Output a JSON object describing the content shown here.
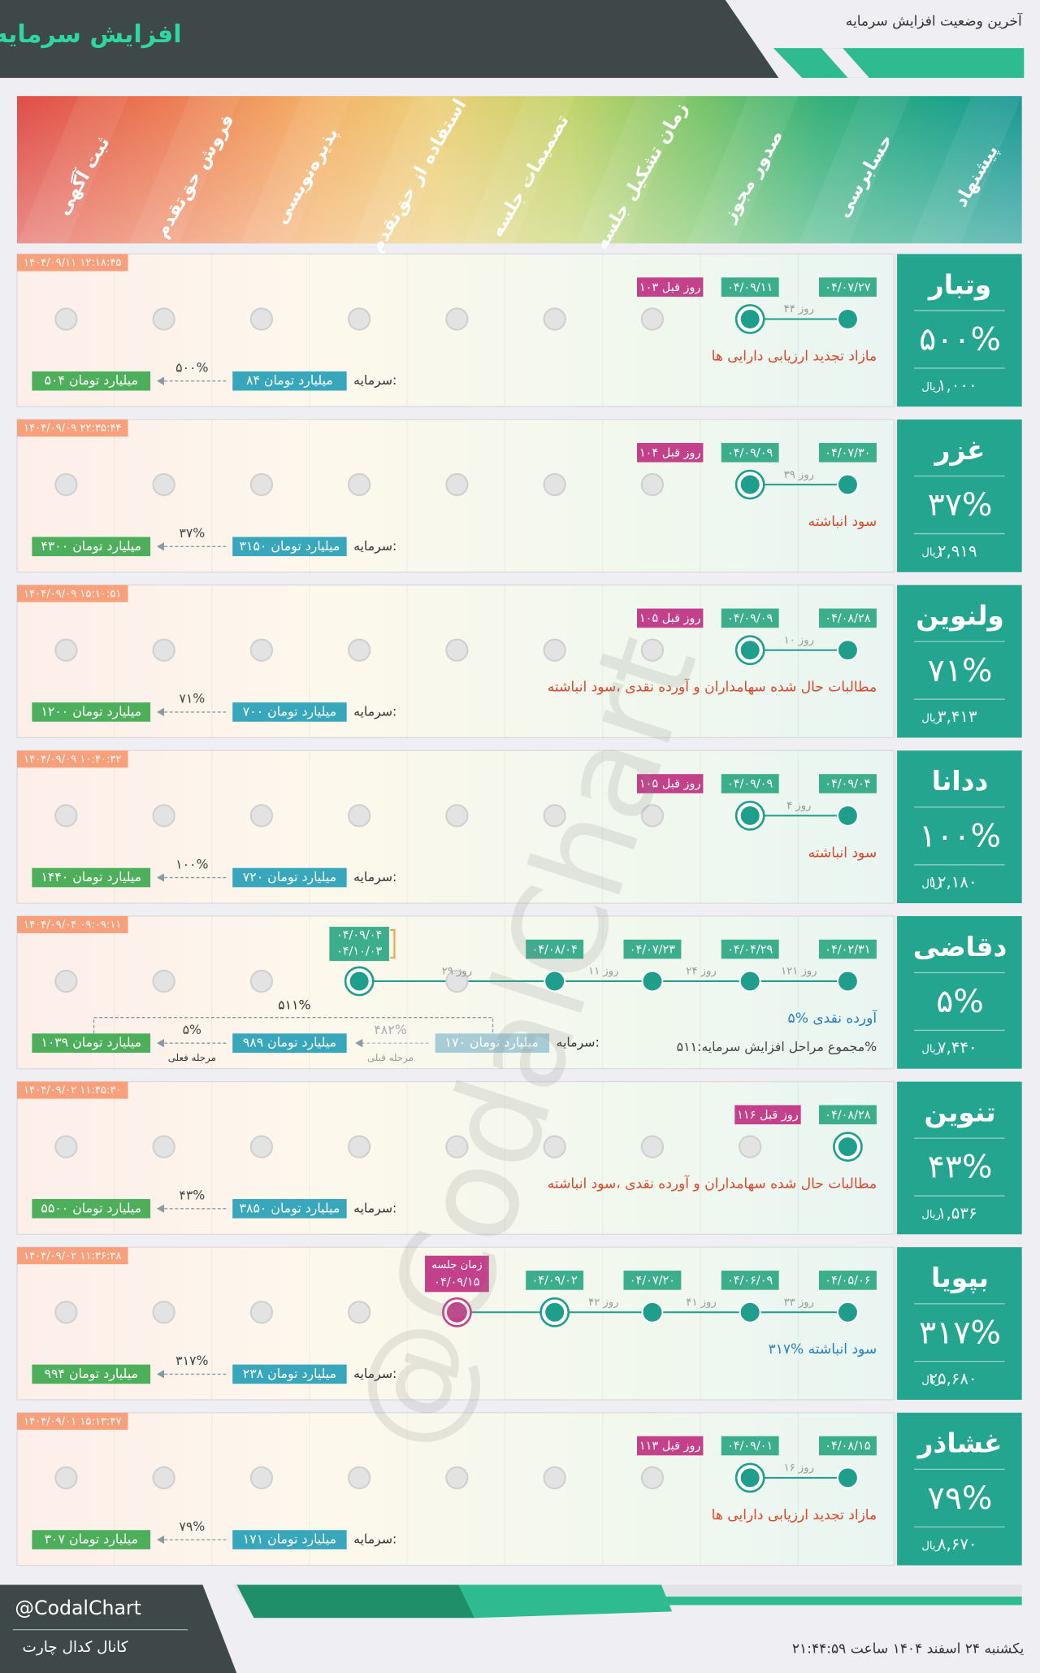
{
  "header": {
    "title": "افزایش سرمایه",
    "subtitle": "آخرین وضعیت افزایش سرمایه"
  },
  "stages": [
    "ثبت آگهی",
    "فروش حق‌تقدم",
    "پذیره‌نویسی",
    "استفاده از حق‌تقدم",
    "تصمیمات جلسه",
    "زمان تشکیل جلسه",
    "صدور مجوز",
    "حسابرسی",
    "پیشنهاد"
  ],
  "price_unit": "ریال",
  "capital_label": "سرمایه:",
  "companies": [
    {
      "name": "وتبار",
      "percent": "۵۰۰%",
      "price": "۱,۰۰۰",
      "timestamp": "۱۴۰۴/۰۹/۱۱ ۱۲:۱۸:۴۵",
      "description": "مازاد تجدید ارزیابی دارایی ها",
      "desc_color": "#d9482b",
      "capital": "۸۴ میلیارد تومان",
      "increase": "۵۰۰%",
      "result": "۵۰۴ میلیارد تومان",
      "dates": [
        null,
        null,
        null,
        null,
        null,
        null,
        null,
        "۰۴/۰۹/۱۱",
        "۰۴/۰۷/۲۷"
      ],
      "gaps": [
        "۴۴ روز"
      ],
      "ago": "۱۰۳ روز قبل"
    },
    {
      "name": "غزر",
      "percent": "۳۷%",
      "price": "۲,۹۱۹",
      "timestamp": "۱۴۰۴/۰۹/۰۹ ۲۲:۳۵:۴۴",
      "description": "سود انباشته",
      "desc_color": "#d9482b",
      "capital": "۳۱۵۰ میلیارد تومان",
      "increase": "۳۷%",
      "result": "۴۳۰۰ میلیارد تومان",
      "dates": [
        null,
        null,
        null,
        null,
        null,
        null,
        null,
        "۰۴/۰۹/۰۹",
        "۰۴/۰۷/۳۰"
      ],
      "gaps": [
        "۳۹ روز"
      ],
      "ago": "۱۰۴ روز قبل"
    },
    {
      "name": "ولنوین",
      "percent": "۷۱%",
      "price": "۳,۴۱۳",
      "timestamp": "۱۴۰۴/۰۹/۰۹ ۱۵:۱۰:۵۱",
      "description": "مطالبات حال شده سهامداران و آورده نقدی ،سود انباشته",
      "desc_color": "#d9482b",
      "capital": "۷۰۰ میلیارد تومان",
      "increase": "۷۱%",
      "result": "۱۲۰۰ میلیارد تومان",
      "dates": [
        null,
        null,
        null,
        null,
        null,
        null,
        null,
        "۰۴/۰۹/۰۹",
        "۰۴/۰۸/۲۸"
      ],
      "gaps": [
        "۱۰ روز"
      ],
      "ago": "۱۰۵ روز قبل"
    },
    {
      "name": "ددانا",
      "percent": "۱۰۰%",
      "price": "۱۲,۱۸۰",
      "timestamp": "۱۴۰۴/۰۹/۰۹ ۱۰:۴۰:۳۲",
      "description": "سود انباشته",
      "desc_color": "#d9482b",
      "capital": "۷۲۰ میلیارد تومان",
      "increase": "۱۰۰%",
      "result": "۱۴۴۰ میلیارد تومان",
      "dates": [
        null,
        null,
        null,
        null,
        null,
        null,
        null,
        "۰۴/۰۹/۰۹",
        "۰۴/۰۹/۰۴"
      ],
      "gaps": [
        "۴ روز"
      ],
      "ago": "۱۰۵ روز قبل"
    },
    {
      "name": "دقاضی",
      "percent": "۵%",
      "price": "۷,۴۴۰",
      "timestamp": "۱۴۰۴/۰۹/۰۴ ۰۹:۰۹:۱۱",
      "description": "۵% آورده نقدی",
      "desc_color": "#2a7fc0",
      "note": "مجموع مراحل افزایش سرمایه:۵۱۱%",
      "capital": "۹۸۹ میلیارد تومان",
      "increase": "۵%",
      "result": "۱۰۳۹ میلیارد تومان",
      "prev_capital": "۱۷۰ میلیارد تومان",
      "prev_increase": "۴۸۲%",
      "total_increase": "۵۱۱%",
      "prev_label": "مرحله قبلی",
      "current_label": "مرحله فعلی",
      "dates": [
        null,
        null,
        null,
        [
          "۰۴/۰۹/۰۴",
          "۰۴/۱۰/۰۳"
        ],
        null,
        "۰۴/۰۸/۰۴",
        "۰۴/۰۷/۲۳",
        "۰۴/۰۴/۲۹",
        "۰۴/۰۲/۳۱"
      ],
      "gaps": [
        "۱۲۱ روز",
        "۲۴ روز",
        "۱۱ روز",
        "۲۹ روز"
      ]
    },
    {
      "name": "تنوین",
      "percent": "۴۳%",
      "price": "۱,۵۳۶",
      "timestamp": "۱۴۰۴/۰۹/۰۲ ۱۱:۴۵:۳۰",
      "description": "مطالبات حال شده سهامداران و آورده نقدی ،سود انباشته",
      "desc_color": "#d9482b",
      "capital": "۳۸۵۰ میلیارد تومان",
      "increase": "۴۳%",
      "result": "۵۵۰۰ میلیارد تومان",
      "dates": [
        null,
        null,
        null,
        null,
        null,
        null,
        null,
        null,
        "۰۴/۰۸/۲۸"
      ],
      "gaps": [],
      "ago": "۱۱۶ روز قبل"
    },
    {
      "name": "بپویا",
      "percent": "۳۱۷%",
      "price": "۲۵,۶۸۰",
      "timestamp": "۱۴۰۴/۰۹/۰۲ ۱۱:۳۶:۳۸",
      "description": "۳۱۷% سود انباشته",
      "desc_color": "#2a7fc0",
      "capital": "۲۳۸ میلیارد تومان",
      "increase": "۳۱۷%",
      "result": "۹۹۴ میلیارد تومان",
      "dates": [
        null,
        null,
        null,
        null,
        null,
        "۰۴/۰۹/۰۲",
        "۰۴/۰۷/۲۰",
        "۰۴/۰۶/۰۹",
        "۰۴/۰۵/۰۶"
      ],
      "gaps": [
        "۳۳ روز",
        "۴۱ روز",
        "۴۲ روز"
      ],
      "meeting": {
        "label": "زمان جلسه",
        "date": "۰۴/۰۹/۱۵"
      }
    },
    {
      "name": "غشاذر",
      "percent": "۷۹%",
      "price": "۸,۶۷۰",
      "timestamp": "۱۴۰۴/۰۹/۰۱ ۱۵:۱۳:۴۷",
      "description": "مازاد تجدید ارزیابی دارایی ها",
      "desc_color": "#d9482b",
      "capital": "۱۷۱ میلیارد تومان",
      "increase": "۷۹%",
      "result": "۳۰۷ میلیارد تومان",
      "dates": [
        null,
        null,
        null,
        null,
        null,
        null,
        null,
        "۰۴/۰۹/۰۱",
        "۰۴/۰۸/۱۵"
      ],
      "gaps": [
        "۱۶ روز"
      ],
      "ago": "۱۱۳ روز قبل"
    }
  ],
  "footer": {
    "handle": "@CodalChart",
    "channel": "کانال کدال چارت",
    "datetime": "یکشنبه ۲۴ اسفند ۱۴۰۴ ساعت ۲۱:۴۴:۵۹"
  }
}
